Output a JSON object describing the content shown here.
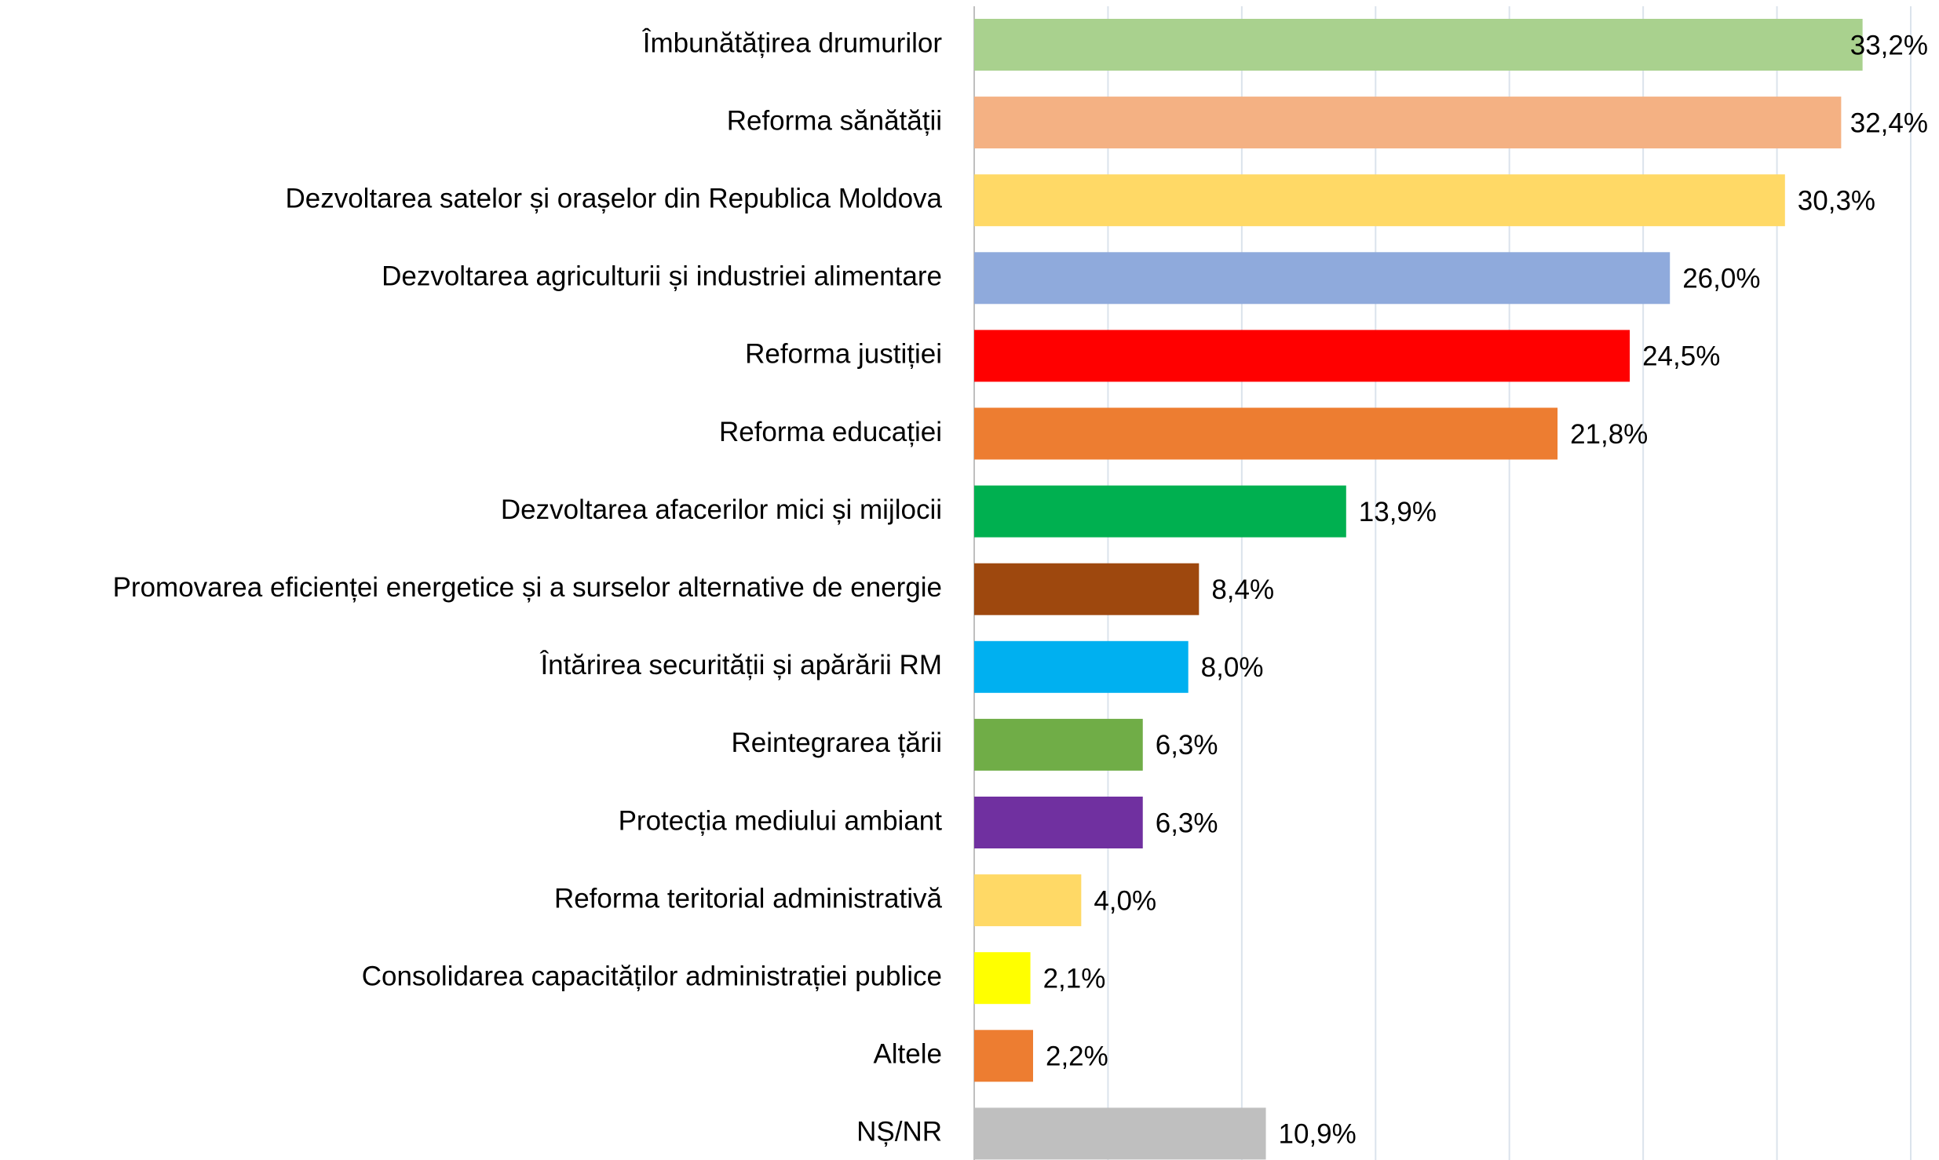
{
  "chart_data": {
    "type": "barh",
    "categories": [
      "Îmbunătățirea drumurilor",
      "Reforma sănătății",
      "Dezvoltarea satelor și orașelor din Republica Moldova",
      "Dezvoltarea agriculturii și industriei alimentare",
      "Reforma justiției",
      "Reforma educației",
      "Dezvoltarea afacerilor mici și mijlocii",
      "Promovarea eficienței energetice și a surselor alternative de energie",
      "Întărirea securității și apărării RM",
      "Reintegrarea țării",
      "Protecția mediului ambiant",
      "Reforma teritorial administrativă",
      "Consolidarea capacităților administrației publice",
      "Altele",
      "NȘ/NR"
    ],
    "values": [
      33.2,
      32.4,
      30.3,
      26.0,
      24.5,
      21.8,
      13.9,
      8.4,
      8.0,
      6.3,
      6.3,
      4.0,
      2.1,
      2.2,
      10.9
    ],
    "value_labels": [
      "33,2%",
      "32,4%",
      "30,3%",
      "26,0%",
      "24,5%",
      "21,8%",
      "13,9%",
      "8,4%",
      "8,0%",
      "6,3%",
      "6,3%",
      "4,0%",
      "2,1%",
      "2,2%",
      "10,9%"
    ],
    "colors": [
      "#a9d18e",
      "#f4b183",
      "#ffd966",
      "#8faadc",
      "#ff0000",
      "#ed7d31",
      "#00b050",
      "#9e480e",
      "#00b0f0",
      "#70ad47",
      "#7030a0",
      "#ffd966",
      "#ffff00",
      "#ed7d31",
      "#bfbfbf"
    ],
    "xlim": [
      0,
      35
    ],
    "xticks": [
      0,
      5,
      10,
      15,
      20,
      25,
      30,
      35
    ],
    "grid": true
  }
}
